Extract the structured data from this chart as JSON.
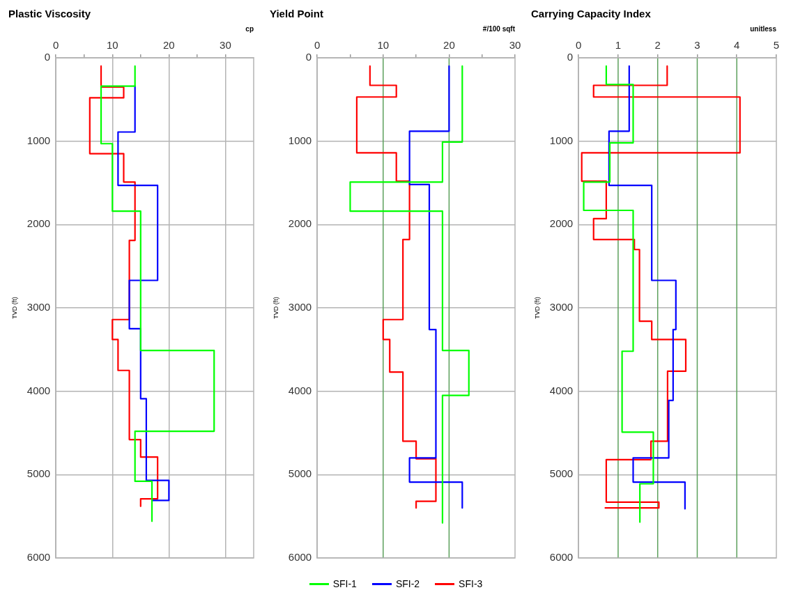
{
  "chart_data": [
    {
      "type": "line",
      "title": "Plastic Viscosity",
      "xlabel": "cp",
      "ylabel": "TVD (ft)",
      "xlim": [
        0,
        35
      ],
      "xticks": [
        0,
        {
          "value": 5,
          "label": null
        },
        10,
        {
          "value": 15,
          "label": null
        },
        20,
        {
          "value": 25,
          "label": null
        },
        30
      ],
      "ylim": [
        6000,
        0
      ],
      "yticks": [
        0,
        1000,
        2000,
        3000,
        4000,
        5000,
        6000
      ],
      "grid": true,
      "legend": "bottom",
      "series": [
        {
          "name": "SFI-1",
          "color": "#00ff00",
          "x": [
            14,
            14,
            8,
            8,
            10,
            10,
            15,
            15,
            28,
            28,
            14,
            14,
            17,
            17
          ],
          "values": [
            100,
            340,
            340,
            1030,
            1030,
            1840,
            1840,
            3510,
            3510,
            4480,
            4480,
            5080,
            5080,
            5560
          ]
        },
        {
          "name": "SFI-2",
          "color": "#0000ff",
          "x": [
            14,
            14,
            11,
            11,
            18,
            18,
            13,
            13,
            15,
            15,
            16,
            16,
            20,
            20,
            17
          ],
          "values": [
            340,
            890,
            890,
            1530,
            1530,
            2670,
            2670,
            3250,
            3250,
            4090,
            4090,
            5070,
            5070,
            5310,
            5310
          ]
        },
        {
          "name": "SFI-3",
          "color": "#ff0000",
          "x": [
            8,
            8,
            12,
            12,
            6,
            6,
            12,
            12,
            14,
            14,
            13,
            13,
            10,
            10,
            11,
            11,
            13,
            13,
            15,
            15,
            18,
            18,
            15,
            15
          ],
          "values": [
            100,
            350,
            350,
            480,
            480,
            1150,
            1150,
            1490,
            1490,
            2190,
            2190,
            3140,
            3140,
            3380,
            3380,
            3750,
            3750,
            4580,
            4580,
            4790,
            4790,
            5290,
            5290,
            5380
          ]
        }
      ]
    },
    {
      "type": "line",
      "title": "Yield Point",
      "xlabel": "#/100 sqft",
      "ylabel": "TVD (ft)",
      "xlim": [
        0,
        30
      ],
      "xticks": [
        0,
        {
          "value": 5,
          "label": null
        },
        10,
        {
          "value": 15,
          "label": null
        },
        20,
        {
          "value": 25,
          "label": null
        },
        30
      ],
      "ylim": [
        6000,
        0
      ],
      "yticks": [
        0,
        1000,
        2000,
        3000,
        4000,
        5000,
        6000
      ],
      "grid": "y",
      "ref_lines": [
        {
          "axis": "x",
          "value": 10,
          "color": "#5ca05c"
        },
        {
          "axis": "x",
          "value": 20,
          "color": "#5ca05c"
        }
      ],
      "series": [
        {
          "color": "#00ff00",
          "x": [
            22,
            22,
            19,
            19,
            5,
            5,
            19,
            19,
            23,
            23,
            19,
            19
          ],
          "values": [
            100,
            1010,
            1010,
            1490,
            1490,
            1840,
            1840,
            3510,
            3510,
            4050,
            4050,
            5580
          ]
        },
        {
          "color": "#0000ff",
          "x": [
            20,
            20,
            14,
            14,
            17,
            17,
            18,
            18,
            14,
            14,
            22,
            22
          ],
          "values": [
            100,
            880,
            880,
            1520,
            1520,
            3260,
            3260,
            4800,
            4800,
            5090,
            5090,
            5400
          ]
        },
        {
          "color": "#ff0000",
          "x": [
            8,
            8,
            12,
            12,
            6,
            6,
            12,
            12,
            14,
            14,
            13,
            13,
            10,
            10,
            11,
            11,
            13,
            13,
            15,
            15,
            18,
            18,
            15,
            15
          ],
          "values": [
            100,
            330,
            330,
            470,
            470,
            1140,
            1140,
            1480,
            1480,
            2180,
            2180,
            3140,
            3140,
            3380,
            3380,
            3770,
            3770,
            4600,
            4600,
            4810,
            4810,
            5320,
            5320,
            5400
          ]
        }
      ]
    },
    {
      "type": "line",
      "title": "Carrying Capacity Index",
      "xlabel": "unitless",
      "ylabel": "TVD (ft)",
      "xlim": [
        0,
        5
      ],
      "xticks": [
        0,
        1,
        2,
        3,
        4,
        5
      ],
      "ylim": [
        6000,
        0
      ],
      "yticks": [
        0,
        1000,
        2000,
        3000,
        4000,
        5000,
        6000
      ],
      "grid": "y",
      "ref_lines": [
        {
          "axis": "x",
          "value": 1,
          "color": "#5ca05c"
        },
        {
          "axis": "x",
          "value": 2,
          "color": "#5ca05c"
        },
        {
          "axis": "x",
          "value": 3,
          "color": "#5ca05c"
        },
        {
          "axis": "x",
          "value": 4,
          "color": "#5ca05c"
        }
      ],
      "series": [
        {
          "color": "#00ff00",
          "x": [
            0.7,
            0.7,
            1.38,
            1.38,
            0.79,
            0.79,
            0.13,
            0.13,
            1.38,
            1.38,
            1.1,
            1.1,
            1.89,
            1.89,
            1.55,
            1.55
          ],
          "values": [
            100,
            320,
            320,
            1020,
            1020,
            1490,
            1490,
            1830,
            1830,
            3520,
            3520,
            4490,
            4490,
            5110,
            5110,
            5570
          ]
        },
        {
          "color": "#0000ff",
          "x": [
            1.28,
            1.28,
            0.77,
            0.77,
            1.85,
            1.85,
            2.46,
            2.46,
            2.39,
            2.39,
            2.28,
            2.28,
            1.38,
            1.38,
            2.69,
            2.69
          ],
          "values": [
            100,
            880,
            880,
            1530,
            1530,
            2670,
            2670,
            3260,
            3260,
            4110,
            4110,
            4800,
            4800,
            5090,
            5090,
            5410
          ]
        },
        {
          "color": "#ff0000",
          "x": [
            2.24,
            2.24,
            0.38,
            0.38,
            4.08,
            4.08,
            0.08,
            0.08,
            0.7,
            0.7,
            0.38,
            0.38,
            1.41,
            1.41,
            1.54,
            1.54,
            1.85,
            1.85,
            2.71,
            2.71,
            2.25,
            2.25,
            1.83,
            1.83,
            0.7,
            0.7,
            2.03,
            2.03,
            0.66
          ],
          "values": [
            100,
            330,
            330,
            470,
            470,
            1140,
            1140,
            1480,
            1480,
            1930,
            1930,
            2180,
            2180,
            2300,
            2300,
            3160,
            3160,
            3380,
            3380,
            3760,
            3760,
            4600,
            4600,
            4820,
            4820,
            5330,
            5330,
            5400,
            5400
          ]
        }
      ]
    }
  ]
}
